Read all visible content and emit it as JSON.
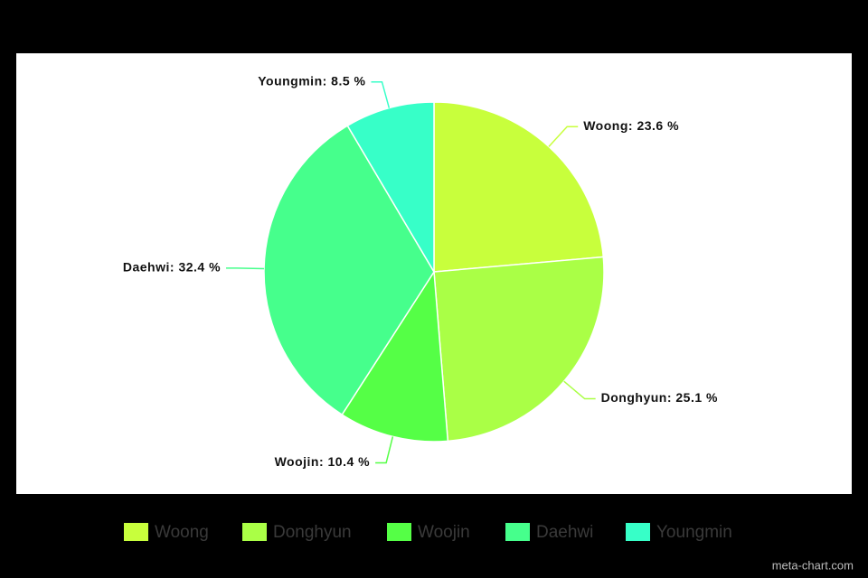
{
  "chart_data": {
    "type": "pie",
    "categories": [
      "Woong",
      "Donghyun",
      "Woojin",
      "Daehwi",
      "Youngmin"
    ],
    "values": [
      23.6,
      25.1,
      10.4,
      32.4,
      8.5
    ],
    "value_labels": [
      "Woong: 23.6 %",
      "Donghyun: 25.1 %",
      "Woojin: 10.4 %",
      "Daehwi: 32.4 %",
      "Youngmin: 8.5 %"
    ],
    "colors": [
      "#c8ff3c",
      "#aaff46",
      "#55ff46",
      "#46ff8c",
      "#37ffc8"
    ],
    "legend": "bottom",
    "watermark": "meta-chart.com"
  }
}
